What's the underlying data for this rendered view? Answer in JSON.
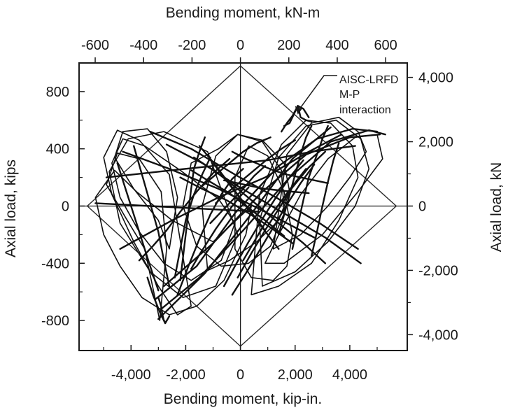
{
  "chart_data": {
    "type": "line",
    "xlabel_bottom": "Bending moment, kip-in.",
    "xlabel_top": "Bending moment, kN-m",
    "ylabel_left": "Axial load, kips",
    "ylabel_right": "Axial load, kN",
    "xlim": [
      -5900,
      6100
    ],
    "ylim": [
      -1010,
      1000
    ],
    "x_ticks_bottom": [
      -4000,
      -2000,
      0,
      2000,
      4000
    ],
    "x_tick_labels_bottom": [
      "-4,000",
      "-2,000",
      "0",
      "2,000",
      "4,000"
    ],
    "x_minor_ticks_bottom": [
      -5000,
      -3000,
      -1000,
      1000,
      3000,
      5000
    ],
    "x_ticks_top_knm": [
      -600,
      -400,
      -200,
      0,
      200,
      400,
      600
    ],
    "x_tick_labels_top": [
      "-600",
      "-400",
      "-200",
      "0",
      "200",
      "400",
      "600"
    ],
    "y_ticks_left": [
      -800,
      -400,
      0,
      400,
      800
    ],
    "y_tick_labels_left": [
      "-800",
      "-400",
      "0",
      "400",
      "800"
    ],
    "y_minor_ticks_left": [
      -600,
      -200,
      200,
      600
    ],
    "y_ticks_right_kn": [
      -4000,
      -2000,
      0,
      2000,
      4000
    ],
    "y_tick_labels_right": [
      "-4,000",
      "-2,000",
      "0",
      "2,000",
      "4,000"
    ],
    "y_minor_ticks_right_kn": [
      -3000,
      -1000,
      1000,
      3000
    ],
    "grid": false,
    "interaction_envelope": {
      "name": "AISC-LRFD M-P interaction",
      "x": [
        0,
        5700,
        0,
        -5600,
        0
      ],
      "y": [
        980,
        0,
        -980,
        0,
        980
      ]
    },
    "annotation": {
      "lines": [
        "AISC-LRFD",
        "M-P",
        "interaction"
      ],
      "arrow_to": {
        "x": 2100,
        "y": 640
      }
    },
    "hysteresis": {
      "loops": [
        {
          "x": [
            -1000,
            -2500,
            -3800,
            -4600,
            -5300,
            -5000,
            -4400,
            -3600,
            -2600,
            -1600,
            -600,
            200,
            400,
            -1000
          ],
          "y": [
            -250,
            -100,
            100,
            250,
            60,
            -200,
            -420,
            -640,
            -760,
            -700,
            -520,
            -200,
            0,
            -250
          ]
        },
        {
          "x": [
            -800,
            -2200,
            -3500,
            -4300,
            -4700,
            -4400,
            -3700,
            -2800,
            -1800,
            -700,
            -200,
            -800
          ],
          "y": [
            50,
            250,
            420,
            470,
            300,
            60,
            -180,
            -400,
            -520,
            -380,
            -120,
            50
          ]
        },
        {
          "x": [
            -2600,
            -3700,
            -4500,
            -5000,
            -4700,
            -3900,
            -3000,
            -2300,
            -1800,
            -2600
          ],
          "y": [
            220,
            460,
            530,
            340,
            80,
            -250,
            -560,
            -760,
            -700,
            220
          ]
        },
        {
          "x": [
            -1200,
            -2800,
            -4100,
            -4800,
            -4400,
            -3300,
            -2100,
            -900,
            -100,
            -1200
          ],
          "y": [
            380,
            520,
            470,
            240,
            -120,
            -460,
            -640,
            -560,
            -200,
            380
          ]
        },
        {
          "x": [
            -3000,
            -3900,
            -4600,
            -4300,
            -3400,
            -2700,
            -2300,
            -2600,
            -3000
          ],
          "y": [
            -100,
            120,
            340,
            520,
            540,
            380,
            60,
            -300,
            -100
          ]
        },
        {
          "x": [
            -3500,
            -4200,
            -4900,
            -4500,
            -3700,
            -2900,
            -2700,
            -2950,
            -3500
          ],
          "y": [
            -300,
            -80,
            150,
            370,
            330,
            100,
            -300,
            -800,
            -300
          ]
        },
        {
          "x": [
            1600,
            3000,
            4300,
            5200,
            5000,
            4200,
            3200,
            2200,
            1400,
            900,
            1600
          ],
          "y": [
            -400,
            -200,
            100,
            330,
            500,
            480,
            330,
            80,
            -200,
            -400,
            -400
          ]
        },
        {
          "x": [
            800,
            2000,
            3200,
            4200,
            4700,
            4400,
            3500,
            2400,
            1400,
            700,
            800
          ],
          "y": [
            -560,
            -460,
            -250,
            0,
            260,
            470,
            600,
            560,
            340,
            -100,
            -560
          ]
        },
        {
          "x": [
            400,
            1400,
            2600,
            3600,
            4300,
            4100,
            3300,
            2400,
            1500,
            700,
            400
          ],
          "y": [
            -620,
            -560,
            -400,
            -100,
            200,
            420,
            580,
            600,
            430,
            80,
            -620
          ]
        },
        {
          "x": [
            1200,
            2200,
            3200,
            4000,
            4600,
            4300,
            3600,
            2600,
            1700,
            1200
          ],
          "y": [
            -300,
            -200,
            0,
            200,
            380,
            520,
            620,
            580,
            360,
            -300
          ]
        },
        {
          "x": [
            -1200,
            -400,
            600,
            1400,
            1800,
            1600,
            800,
            -100,
            -900,
            -1400,
            -1200
          ],
          "y": [
            -450,
            -380,
            -250,
            -100,
            100,
            300,
            460,
            500,
            350,
            0,
            -450
          ]
        },
        {
          "x": [
            -800,
            -1800,
            -2100,
            -1600,
            -700,
            300,
            1100,
            1600,
            1500,
            800,
            -100,
            -800
          ],
          "y": [
            400,
            300,
            0,
            -280,
            -420,
            -400,
            -280,
            -50,
            250,
            450,
            500,
            400
          ]
        },
        {
          "x": [
            -200,
            400,
            1200,
            1700,
            1900,
            1600,
            1000,
            300,
            -200,
            -200
          ],
          "y": [
            -300,
            -500,
            -520,
            -420,
            -200,
            100,
            350,
            420,
            200,
            -300
          ]
        }
      ],
      "strokes": [
        {
          "x": [
            -2900,
            -1500,
            200,
            1800,
            3300,
            4700,
            5300
          ],
          "y": [
            -720,
            -500,
            -150,
            200,
            450,
            530,
            500
          ]
        },
        {
          "x": [
            -3100,
            -1600,
            -200,
            1400,
            2800,
            4100,
            5000
          ],
          "y": [
            -650,
            -420,
            -50,
            280,
            470,
            540,
            520
          ]
        },
        {
          "x": [
            -2800,
            -1000,
            800,
            2400,
            4000,
            5100
          ],
          "y": [
            -560,
            -260,
            100,
            360,
            480,
            500
          ]
        },
        {
          "x": [
            -4400,
            -2500,
            -800,
            900,
            2500,
            3700
          ],
          "y": [
            -300,
            -100,
            60,
            200,
            380,
            500
          ]
        },
        {
          "x": [
            -3000,
            -1300,
            300,
            1900,
            3300
          ],
          "y": [
            -790,
            -470,
            -80,
            330,
            550
          ]
        },
        {
          "x": [
            -4900,
            -3000,
            -1000,
            1000,
            2600,
            4200
          ],
          "y": [
            200,
            240,
            280,
            320,
            380,
            420
          ]
        },
        {
          "x": [
            -3300,
            -1800,
            -200,
            1300,
            2900,
            4300
          ],
          "y": [
            520,
            400,
            220,
            60,
            -120,
            -300
          ]
        },
        {
          "x": [
            -2700,
            -1400,
            -100,
            1500,
            3100,
            4400
          ],
          "y": [
            430,
            300,
            140,
            -40,
            -220,
            -400
          ]
        },
        {
          "x": [
            -4300,
            -2600,
            -800,
            900,
            2700
          ],
          "y": [
            380,
            260,
            120,
            -40,
            -220
          ]
        },
        {
          "x": [
            -1700,
            -900,
            -100,
            600,
            1400,
            2300,
            3100
          ],
          "y": [
            340,
            240,
            120,
            10,
            -120,
            -260,
            -400
          ]
        },
        {
          "x": [
            -1800,
            -1200,
            -400,
            200,
            900,
            1600
          ],
          "y": [
            250,
            180,
            90,
            0,
            -100,
            -210
          ]
        },
        {
          "x": [
            -2200,
            -1400,
            -500,
            300,
            1100,
            1900
          ],
          "y": [
            200,
            120,
            40,
            -50,
            -150,
            -260
          ]
        },
        {
          "x": [
            -1300,
            -1500,
            -1700,
            -1800,
            -1900,
            -2000,
            -2100,
            -2200
          ],
          "y": [
            480,
            380,
            260,
            120,
            -40,
            -200,
            -360,
            -520
          ]
        },
        {
          "x": [
            -2400,
            -2200,
            -2000,
            -1700,
            -1400,
            -1100
          ],
          "y": [
            -500,
            -300,
            -100,
            80,
            220,
            340
          ]
        },
        {
          "x": [
            -1100,
            -700,
            -300,
            100,
            500,
            900
          ],
          "y": [
            -120,
            -40,
            40,
            120,
            210,
            280
          ]
        },
        {
          "x": [
            -3700,
            -3200,
            -2700,
            -2200,
            -1600,
            -1000,
            -400
          ],
          "y": [
            -380,
            -280,
            -170,
            -40,
            100,
            230,
            330
          ]
        },
        {
          "x": [
            -2300,
            -1900,
            -1500,
            -1100,
            -700,
            -300,
            100
          ],
          "y": [
            -620,
            -420,
            -230,
            -60,
            80,
            190,
            260
          ]
        },
        {
          "x": [
            -1800,
            -1500,
            -1200,
            -900,
            -600,
            -300,
            0,
            300
          ],
          "y": [
            -440,
            -340,
            -250,
            -160,
            -80,
            0,
            70,
            130
          ]
        },
        {
          "x": [
            -600,
            -200,
            300,
            800,
            1300,
            1800,
            2300
          ],
          "y": [
            -560,
            -420,
            -250,
            -90,
            60,
            200,
            320
          ]
        },
        {
          "x": [
            -300,
            200,
            700,
            1200,
            1700,
            2200,
            2700
          ],
          "y": [
            -620,
            -470,
            -310,
            -150,
            10,
            160,
            290
          ]
        },
        {
          "x": [
            -100,
            400,
            900,
            1400,
            1900,
            2500,
            3100
          ],
          "y": [
            -500,
            -330,
            -170,
            -20,
            130,
            270,
            380
          ]
        },
        {
          "x": [
            100,
            500,
            900,
            1400,
            1900,
            2400
          ],
          "y": [
            -380,
            -250,
            -120,
            10,
            140,
            260
          ]
        },
        {
          "x": [
            -1400,
            -900,
            -400,
            100,
            600,
            1100
          ],
          "y": [
            140,
            220,
            300,
            380,
            440,
            480
          ]
        },
        {
          "x": [
            -900,
            -500,
            0,
            500,
            1000,
            1500,
            2000
          ],
          "y": [
            20,
            90,
            170,
            250,
            330,
            400,
            460
          ]
        },
        {
          "x": [
            1400,
            1600,
            1800,
            2000,
            2200,
            2400,
            2600
          ],
          "y": [
            -200,
            -60,
            80,
            220,
            360,
            480,
            560
          ]
        },
        {
          "x": [
            1900,
            2100,
            2300,
            2500,
            2800,
            3000,
            3200
          ],
          "y": [
            -300,
            -130,
            40,
            200,
            360,
            470,
            560
          ]
        },
        {
          "x": [
            2600,
            2800,
            3000,
            3200,
            3400,
            3600
          ],
          "y": [
            -350,
            -180,
            0,
            170,
            320,
            440
          ]
        },
        {
          "x": [
            -3900,
            -3600,
            -3300,
            -3000,
            -2800,
            -2600
          ],
          "y": [
            420,
            220,
            20,
            -180,
            -380,
            -560
          ]
        },
        {
          "x": [
            -4500,
            -4200,
            -3900,
            -3600,
            -3300,
            -3000
          ],
          "y": [
            300,
            120,
            -60,
            -240,
            -420,
            -590
          ]
        },
        {
          "x": [
            -3400,
            -3200,
            -2950,
            -2750,
            -2600
          ],
          "y": [
            -500,
            -620,
            -740,
            -820,
            -770
          ]
        },
        {
          "x": [
            -3000,
            -2900,
            -2850,
            -2800,
            -2750
          ],
          "y": [
            -640,
            -700,
            -760,
            -800,
            -810
          ]
        },
        {
          "x": [
            -1000,
            -600,
            -200,
            200,
            600,
            1000,
            1400
          ],
          "y": [
            300,
            200,
            100,
            0,
            -100,
            -200,
            -300
          ]
        },
        {
          "x": [
            -1500,
            -1100,
            -700,
            -300,
            100,
            500,
            900
          ],
          "y": [
            420,
            330,
            230,
            130,
            30,
            -70,
            -170
          ]
        },
        {
          "x": [
            -300,
            200,
            700,
            1200,
            1700,
            2200,
            2700,
            3200
          ],
          "y": [
            380,
            330,
            290,
            250,
            220,
            200,
            180,
            160
          ]
        },
        {
          "x": [
            -600,
            -100,
            400,
            900,
            1400,
            1900,
            2500
          ],
          "y": [
            180,
            160,
            140,
            120,
            110,
            100,
            90
          ]
        },
        {
          "x": [
            -5300,
            -4300,
            -3300,
            -2300,
            -1300,
            -300,
            700
          ],
          "y": [
            20,
            10,
            0,
            -10,
            -20,
            -30,
            -40
          ]
        },
        {
          "x": [
            1600,
            1800,
            1900,
            2000,
            2100,
            2200,
            2400,
            2600
          ],
          "y": [
            560,
            580,
            620,
            660,
            700,
            620,
            600,
            590
          ]
        },
        {
          "x": [
            1500,
            1700,
            1900,
            2100,
            2300,
            2500
          ],
          "y": [
            520,
            580,
            630,
            700,
            680,
            620
          ]
        }
      ]
    }
  }
}
